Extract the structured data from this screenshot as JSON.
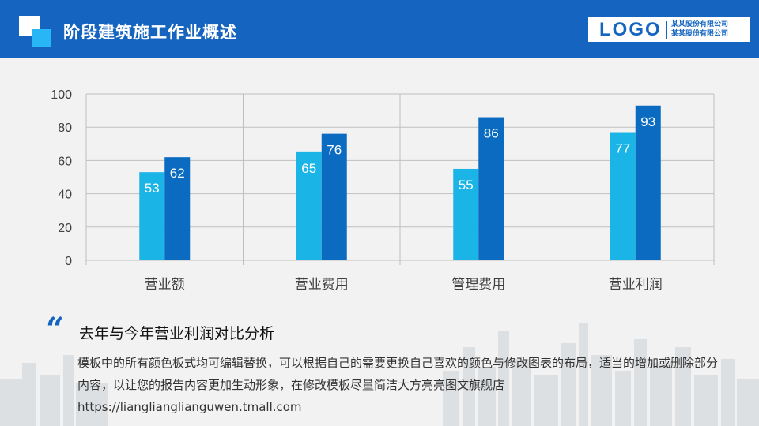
{
  "header": {
    "title": "阶段建筑施工作业概述",
    "logo": "LOGO",
    "company_lines": [
      "某某股份有限公司",
      "某某股份有限公司"
    ]
  },
  "colors": {
    "header_bg": "#1565c0",
    "series_light": "#1ab5e6",
    "series_dark": "#0b6bc1"
  },
  "chart_data": {
    "type": "bar",
    "categories": [
      "营业额",
      "营业费用",
      "管理费用",
      "营业利润"
    ],
    "series": [
      {
        "values": [
          53,
          65,
          55,
          77
        ]
      },
      {
        "values": [
          62,
          76,
          86,
          93
        ]
      }
    ],
    "ylim": [
      0,
      100
    ],
    "yticks": [
      0,
      20,
      40,
      60,
      80,
      100
    ],
    "grid": true,
    "data_labels": true
  },
  "summary": {
    "quote_mark": "“",
    "title": "去年与今年营业利润对比分析",
    "text": "模板中的所有颜色板式均可编辑替换，可以根据自己的需要更换自己喜欢的颜色与修改图表的布局，适当的增加或删除部分内容，以让您的报告内容更加生动形象，在修改模板尽量简洁大方亮亮图文旗舰店https://lianglianglianguwen.tmall.com"
  }
}
